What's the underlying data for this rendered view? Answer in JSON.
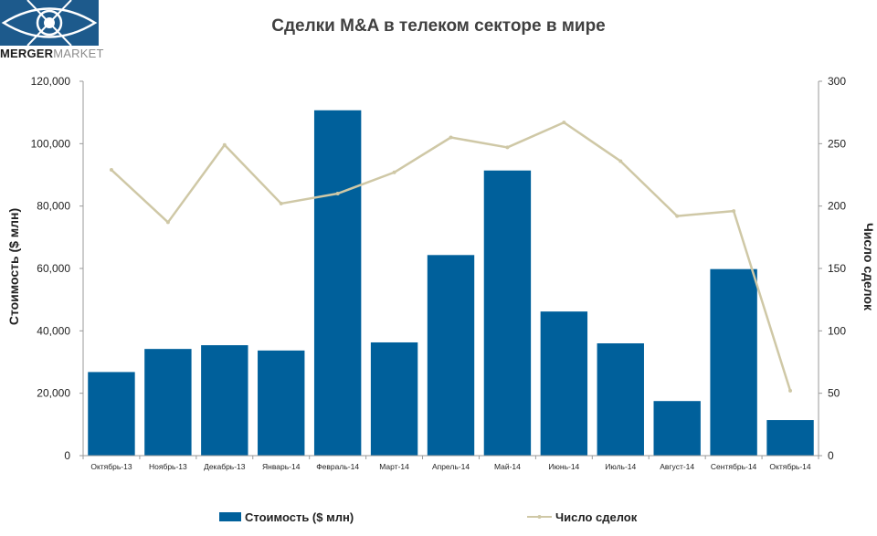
{
  "logo": {
    "text_part1": "MERGER",
    "text_part2": "MARKET"
  },
  "colors": {
    "bar": "#00609b",
    "line": "#cfc8a6",
    "axis": "#9a9a9a",
    "logo_bg": "#1d5a8c"
  },
  "chart_data": {
    "type": "bar",
    "title": "Сделки M&A в телеком секторе в мире",
    "categories": [
      "Октябрь-13",
      "Ноябрь-13",
      "Декабрь-13",
      "Январь-14",
      "Февраль-14",
      "Март-14",
      "Апрель-14",
      "Май-14",
      "Июнь-14",
      "Июль-14",
      "Август-14",
      "Сентябрь-14",
      "Октябрь-14"
    ],
    "series": [
      {
        "name": "Стоимость ($ млн)",
        "type": "bar",
        "axis": "left",
        "values": [
          26800,
          34200,
          35400,
          33700,
          110700,
          36300,
          64300,
          91400,
          46200,
          36000,
          17500,
          59800,
          11400
        ]
      },
      {
        "name": "Число сделок",
        "type": "line",
        "axis": "right",
        "values": [
          229,
          187,
          249,
          202,
          210,
          227,
          255,
          247,
          267,
          236,
          192,
          196,
          52
        ]
      }
    ],
    "ylabel": "Стоимость  ($ млн)",
    "y2label": "Число сделок",
    "ylim": [
      0,
      120000
    ],
    "y2lim": [
      0,
      300
    ],
    "yticks": [
      "0",
      "20,000",
      "40,000",
      "60,000",
      "80,000",
      "100,000",
      "120,000"
    ],
    "y2ticks": [
      "0",
      "50",
      "100",
      "150",
      "200",
      "250",
      "300"
    ],
    "grid": false,
    "legend": "bottom"
  }
}
